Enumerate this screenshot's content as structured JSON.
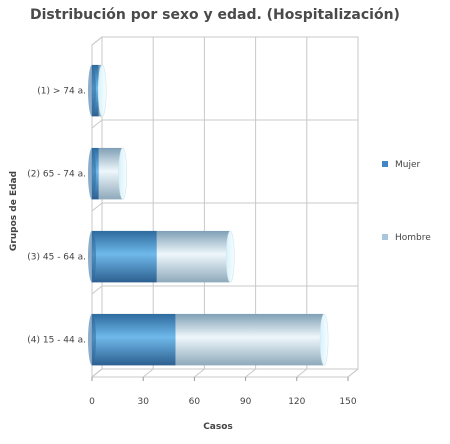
{
  "chart_data": {
    "type": "bar",
    "orientation": "horizontal",
    "stacked": true,
    "style": "3d-cylinder",
    "title": "Distribución por sexo y edad. (Hospitalización)",
    "xlabel": "Casos",
    "ylabel": "Grupos de Edad",
    "categories": [
      "(1) > 74 a.",
      "(2) 65 - 74 a.",
      "(3) 45 - 64 a.",
      "(4) 15 - 44 a."
    ],
    "series": [
      {
        "name": "Mujer",
        "color": "#3f88c5",
        "values": [
          4,
          4,
          38,
          49
        ]
      },
      {
        "name": "Hombre",
        "color": "#a8c7dc",
        "values": [
          2,
          14,
          43,
          87
        ]
      }
    ],
    "xlim": [
      0,
      150
    ],
    "xticks": [
      0,
      30,
      60,
      90,
      120,
      150
    ],
    "grid": true,
    "legend_position": "right"
  }
}
